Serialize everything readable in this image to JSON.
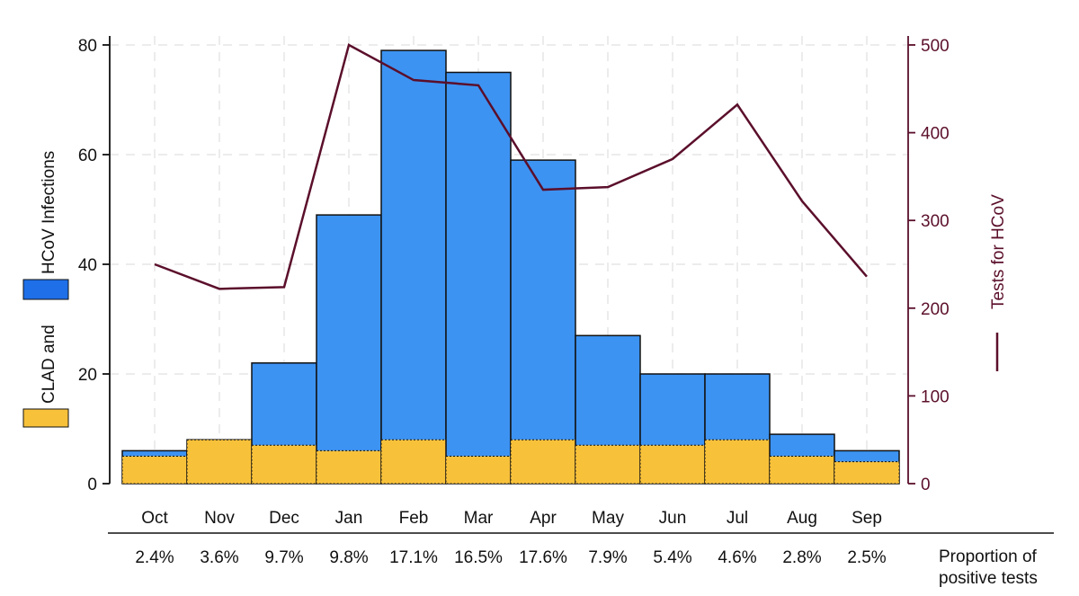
{
  "chart_data": {
    "type": "bar",
    "stacked": true,
    "categories": [
      "Oct",
      "Nov",
      "Dec",
      "Jan",
      "Feb",
      "Mar",
      "Apr",
      "May",
      "Jun",
      "Jul",
      "Aug",
      "Sep"
    ],
    "series": [
      {
        "name": "CLAD and",
        "color": "#f8c13a",
        "values": [
          5,
          8,
          7,
          6,
          8,
          5,
          8,
          7,
          7,
          8,
          5,
          4
        ]
      },
      {
        "name": "HCoV Infections",
        "color": "#3d93f2",
        "values": [
          1,
          0,
          15,
          43,
          71,
          70,
          51,
          20,
          13,
          12,
          4,
          2
        ]
      }
    ],
    "bar_totals": [
      6,
      8,
      22,
      49,
      79,
      75,
      59,
      27,
      20,
      20,
      9,
      6
    ],
    "line_series": {
      "name": "Tests for HCoV",
      "color": "#5b0f2b",
      "values": [
        250,
        222,
        224,
        500,
        460,
        454,
        335,
        338,
        370,
        432,
        322,
        236
      ]
    },
    "ylim_left": [
      0,
      80
    ],
    "yticks_left": [
      "0",
      "20",
      "40",
      "60",
      "80"
    ],
    "ylim_right": [
      0,
      500
    ],
    "yticks_right": [
      "0",
      "100",
      "200",
      "300",
      "400",
      "500"
    ],
    "grid": true,
    "left_axis_legend": {
      "label_bottom": "CLAD and",
      "label_top": "HCoV Infections"
    },
    "right_axis_label": "Tests for HCoV",
    "proportions": [
      "2.4%",
      "3.6%",
      "9.7%",
      "9.8%",
      "17.1%",
      "16.5%",
      "17.6%",
      "7.9%",
      "5.4%",
      "4.6%",
      "2.8%",
      "2.5%"
    ],
    "proportion_label": [
      "Proportion of",
      "positive tests"
    ]
  }
}
